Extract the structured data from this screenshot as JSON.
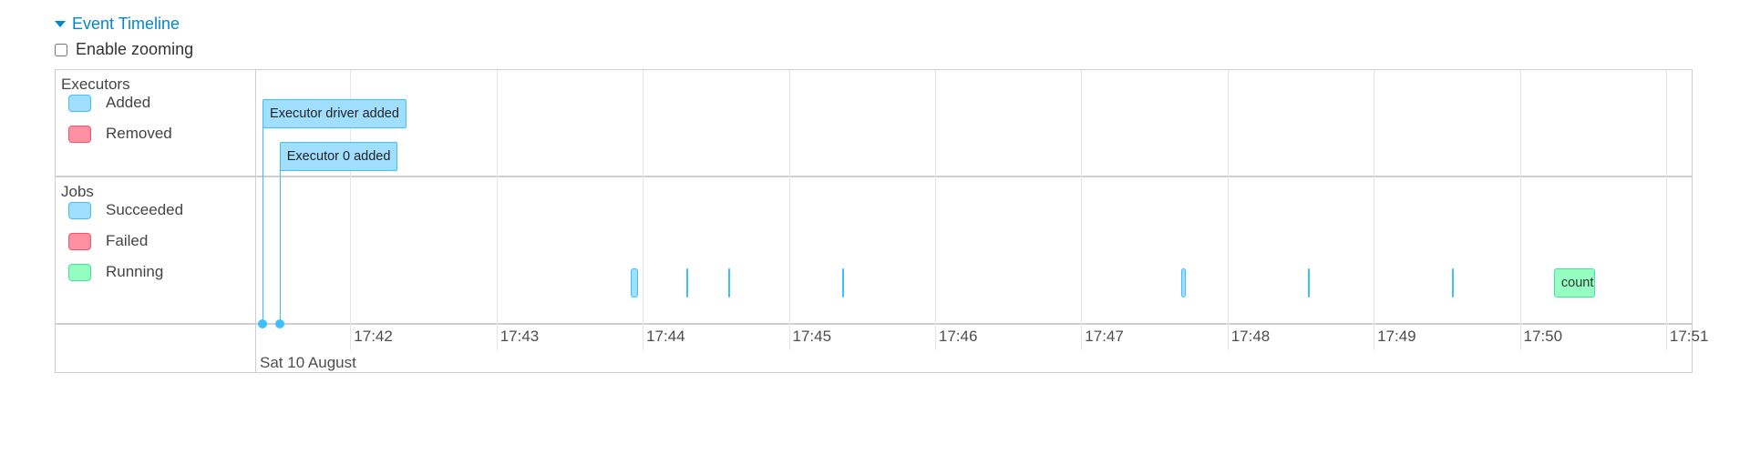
{
  "header": {
    "title": "Event Timeline",
    "zoom_label": "Enable zooming",
    "zoom_enabled": false
  },
  "colors": {
    "added_fill": "#A0DFFF",
    "added_border": "#3EC0FF",
    "removed_fill": "#FF91A3",
    "removed_border": "#FF4D6D",
    "running_fill": "#95FFC2",
    "running_border": "#3EE699",
    "accent": "#0088cc"
  },
  "groups": {
    "executors": {
      "label": "Executors",
      "legend": [
        {
          "label": "Added",
          "status": "added"
        },
        {
          "label": "Removed",
          "status": "removed"
        }
      ]
    },
    "jobs": {
      "label": "Jobs",
      "legend": [
        {
          "label": "Succeeded",
          "status": "succeeded"
        },
        {
          "label": "Failed",
          "status": "failed"
        },
        {
          "label": "Running",
          "status": "running"
        }
      ]
    }
  },
  "axis": {
    "date_label": "Sat 10 August",
    "ticks": [
      "17:42",
      "17:43",
      "17:44",
      "17:45",
      "17:46",
      "17:47",
      "17:48",
      "17:49",
      "17:50",
      "17:51"
    ]
  },
  "executor_events": [
    {
      "label": "Executor driver added",
      "time": "17:41:24",
      "status": "added"
    },
    {
      "label": "Executor 0 added",
      "time": "17:41:31",
      "status": "added"
    }
  ],
  "job_events": [
    {
      "start": "17:43:55",
      "end": "17:43:58",
      "status": "succeeded",
      "label": ""
    },
    {
      "start": "17:44:18",
      "end": "17:44:18",
      "status": "succeeded",
      "label": ""
    },
    {
      "start": "17:44:35",
      "end": "17:44:35",
      "status": "succeeded",
      "label": ""
    },
    {
      "start": "17:45:22",
      "end": "17:45:22",
      "status": "succeeded",
      "label": ""
    },
    {
      "start": "17:47:41",
      "end": "17:47:43",
      "status": "succeeded",
      "label": ""
    },
    {
      "start": "17:48:33",
      "end": "17:48:33",
      "status": "succeeded",
      "label": ""
    },
    {
      "start": "17:49:32",
      "end": "17:49:32",
      "status": "succeeded",
      "label": ""
    },
    {
      "start": "17:50:14",
      "end": "17:50:31",
      "status": "running",
      "label": "count"
    }
  ]
}
